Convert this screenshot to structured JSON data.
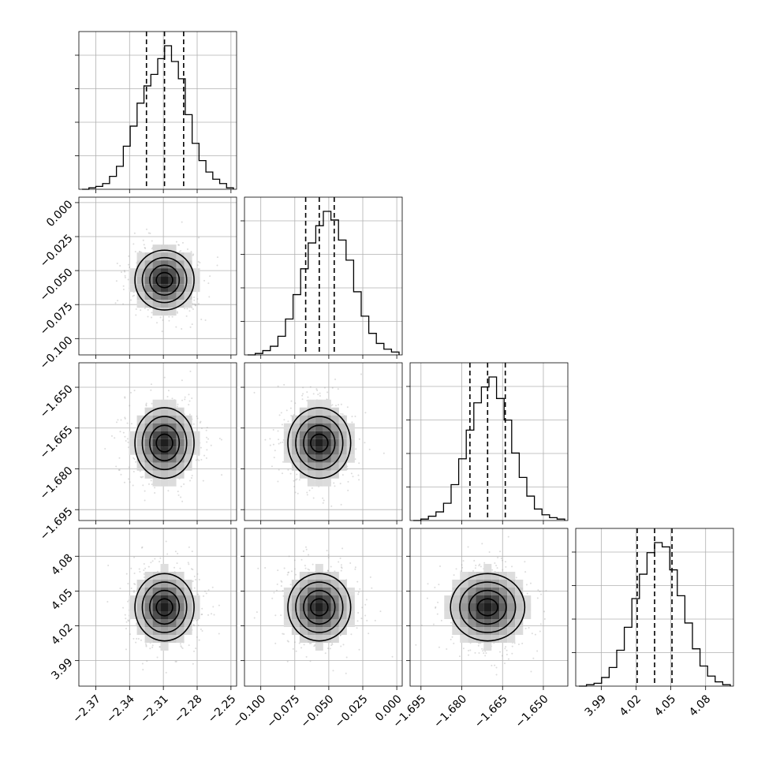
{
  "chart_data": {
    "type": "corner",
    "parameters": [
      {
        "range": [
          -2.385,
          -2.245
        ],
        "ticks": [
          "−2.37",
          "−2.34",
          "−2.31",
          "−2.28",
          "−2.25"
        ],
        "tick_values": [
          -2.37,
          -2.34,
          -2.31,
          -2.28,
          -2.25
        ],
        "quantiles": [
          -2.325,
          -2.309,
          -2.292
        ],
        "mean": -2.309,
        "sd": 0.0125
      },
      {
        "range": [
          -0.112,
          0.004
        ],
        "ticks": [
          "−0.100",
          "−0.075",
          "−0.050",
          "−0.025",
          "0.000"
        ],
        "tick_values": [
          -0.1,
          -0.075,
          -0.05,
          -0.025,
          0.0
        ],
        "quantiles": [
          -0.067,
          -0.057,
          -0.046
        ],
        "mean": -0.057,
        "sd": 0.011
      },
      {
        "range": [
          -1.699,
          -1.641
        ],
        "ticks": [
          "−1.695",
          "−1.680",
          "−1.665",
          "−1.650"
        ],
        "tick_values": [
          -1.695,
          -1.68,
          -1.665,
          -1.65
        ],
        "quantiles": [
          -1.677,
          -1.6705,
          -1.664
        ],
        "mean": -1.6705,
        "sd": 0.0065
      },
      {
        "range": [
          3.968,
          4.104
        ],
        "ticks": [
          "3.99",
          "4.02",
          "4.05",
          "4.08"
        ],
        "tick_values": [
          3.99,
          4.02,
          4.05,
          4.08
        ],
        "quantiles": [
          4.021,
          4.036,
          4.051
        ],
        "mean": 4.036,
        "sd": 0.0145
      }
    ],
    "histograms": [
      [
        0,
        1,
        2,
        4,
        9,
        16,
        30,
        44,
        60,
        72,
        80,
        91,
        100,
        89,
        77,
        52,
        32,
        20,
        12,
        7,
        4,
        1
      ],
      [
        0,
        1,
        3,
        6,
        13,
        25,
        42,
        60,
        78,
        90,
        100,
        94,
        80,
        66,
        44,
        27,
        15,
        8,
        4,
        2
      ],
      [
        0,
        1,
        3,
        6,
        12,
        25,
        43,
        63,
        82,
        93,
        100,
        85,
        70,
        47,
        30,
        17,
        8,
        4,
        2,
        1
      ],
      [
        0,
        1,
        2,
        6,
        13,
        25,
        41,
        61,
        78,
        93,
        100,
        97,
        81,
        63,
        44,
        26,
        14,
        7,
        3,
        1
      ]
    ],
    "grid": true,
    "quantile_lines": "dashed"
  }
}
